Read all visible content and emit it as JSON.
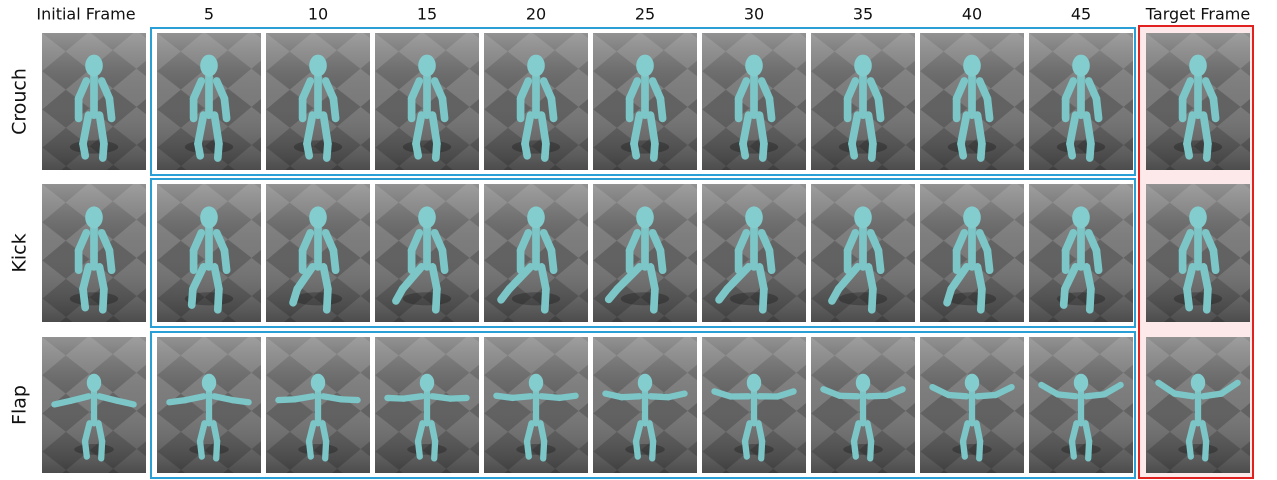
{
  "header": {
    "columns": [
      "Initial Frame",
      "5",
      "10",
      "15",
      "20",
      "25",
      "30",
      "35",
      "40",
      "45",
      "Target Frame"
    ]
  },
  "rows": [
    {
      "label": "Crouch"
    },
    {
      "label": "Kick"
    },
    {
      "label": "Flap"
    }
  ]
}
